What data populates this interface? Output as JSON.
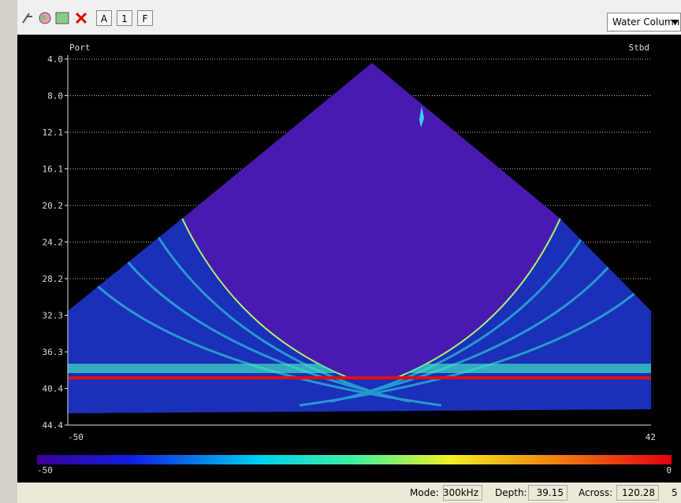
{
  "toolbar": {
    "buttons": [
      "A",
      "1",
      "F"
    ],
    "view_select": "Water Column"
  },
  "plot": {
    "port_label": "Port",
    "stbd_label": "Stbd",
    "y_labels": [
      "4.0",
      "8.0",
      "12.1",
      "16.1",
      "20.2",
      "24.2",
      "28.2",
      "32.3",
      "36.3",
      "40.4",
      "44.4"
    ],
    "x_min_label": "-50",
    "x_max_label": "42"
  },
  "color_scale": {
    "min_label": "-50",
    "max_label": "0"
  },
  "status": {
    "mode_label": "Mode:",
    "mode": "300kHz",
    "depth_label": "Depth:",
    "depth": "39.15",
    "across_label": "Across:",
    "across": "120.28",
    "extra": "5"
  }
}
